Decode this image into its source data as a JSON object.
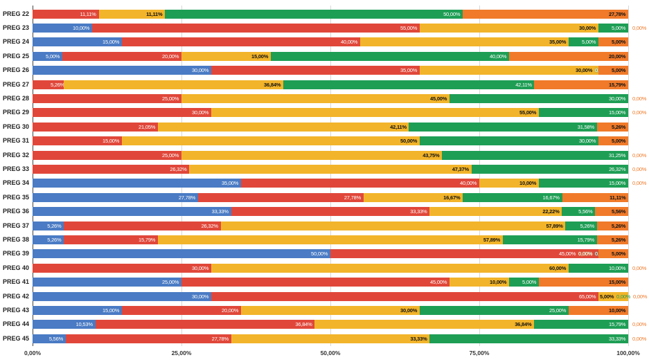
{
  "chart_data": {
    "type": "bar",
    "orientation": "horizontal",
    "stacked": true,
    "categories": [
      "PREG 22",
      "PREG 23",
      "PREG 24",
      "PREG 25",
      "PREG 26",
      "PREG 27",
      "PREG 28",
      "PREG 29",
      "PREG 30",
      "PREG 31",
      "PREG 32",
      "PREG 33",
      "PREG 34",
      "PREG 35",
      "PREG 36",
      "PREG 37",
      "PREG 38",
      "PREG 39",
      "PREG 40",
      "PREG 41",
      "PREG 42",
      "PREG 43",
      "PREG 44",
      "PREG 45"
    ],
    "series": [
      {
        "color": "#4a7bc4",
        "values": [
          0,
          10,
          15,
          5,
          30,
          0,
          0,
          0,
          0,
          0,
          0,
          0,
          35,
          27.78,
          33.33,
          5.26,
          5.26,
          50,
          0,
          25,
          30,
          15,
          10.53,
          5.56
        ]
      },
      {
        "color": "#e0473a",
        "values": [
          11.11,
          55,
          40,
          20,
          35,
          5.26,
          25,
          30,
          21.05,
          15,
          25,
          26.32,
          40,
          27.78,
          33.33,
          26.32,
          15.79,
          45,
          30,
          45,
          65,
          20,
          36.84,
          27.78
        ]
      },
      {
        "color": "#f2b42a",
        "values": [
          11.11,
          30,
          35,
          15,
          30,
          36.84,
          45,
          55,
          42.11,
          50,
          43.75,
          47.37,
          10,
          16.67,
          22.22,
          57.89,
          57.89,
          0,
          60,
          10,
          5,
          30,
          36.84,
          33.33
        ]
      },
      {
        "color": "#1e9e55",
        "values": [
          50,
          5,
          5,
          40,
          0,
          42.11,
          30,
          15,
          31.58,
          30,
          31.25,
          26.32,
          15,
          16.67,
          5.56,
          5.26,
          15.79,
          0,
          10,
          5,
          0,
          25,
          15.79,
          33.33
        ]
      },
      {
        "color": "#f07a2a",
        "values": [
          27.78,
          0,
          5,
          20,
          5,
          15.79,
          0,
          0,
          5.26,
          5,
          0,
          0,
          0,
          11.11,
          5.56,
          5.26,
          5.26,
          5,
          0,
          15,
          0,
          10,
          0,
          0
        ]
      }
    ],
    "xlim": [
      0,
      100
    ],
    "xticks": [
      "0,00%",
      "25,00%",
      "50,00%",
      "75,00%",
      "100,00%"
    ],
    "grid": true,
    "legend": "none"
  }
}
